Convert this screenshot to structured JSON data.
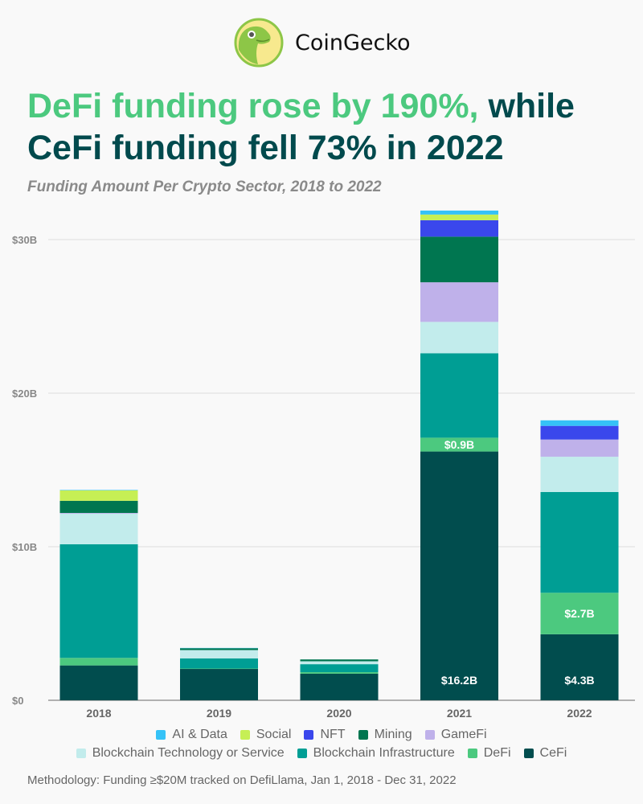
{
  "brand": {
    "name": "CoinGecko",
    "logo_icon": "gecko-logo-icon"
  },
  "title": {
    "highlight": "DeFi funding rose by 190%,",
    "rest_line1": " while",
    "line2": "CeFi funding fell 73% in 2022"
  },
  "colors": {
    "highlight": "#4cc97f",
    "title": "#014a4d"
  },
  "chart_data": {
    "type": "bar",
    "stacked": true,
    "title": "Funding Amount Per Crypto Sector, 2018 to 2022",
    "xlabel": "",
    "ylabel": "",
    "categories": [
      "2018",
      "2019",
      "2020",
      "2021",
      "2022"
    ],
    "ylim": [
      0,
      32
    ],
    "yticks": [
      {
        "value": 0,
        "label": "$0"
      },
      {
        "value": 10,
        "label": "$10B"
      },
      {
        "value": 20,
        "label": "$20B"
      },
      {
        "value": 30,
        "label": "$30B"
      }
    ],
    "grid": true,
    "legend_position": "bottom",
    "series": [
      {
        "name": "CeFi",
        "color": "#014d4e",
        "values": [
          2.27,
          2.04,
          1.73,
          16.2,
          4.3
        ]
      },
      {
        "name": "DeFi",
        "color": "#4cc97f",
        "values": [
          0.49,
          0.03,
          0.1,
          0.9,
          2.7
        ]
      },
      {
        "name": "Blockchain Infrastructure",
        "color": "#009e94",
        "values": [
          7.4,
          0.66,
          0.52,
          5.5,
          6.56
        ]
      },
      {
        "name": "Blockchain Technology or Service",
        "color": "#c2ecec",
        "values": [
          1.99,
          0.54,
          0.19,
          2.04,
          2.3
        ]
      },
      {
        "name": "GameFi",
        "color": "#bfb1ea",
        "values": [
          0.05,
          0,
          0,
          2.58,
          1.12
        ]
      },
      {
        "name": "Mining",
        "color": "#007650",
        "values": [
          0.79,
          0.12,
          0.12,
          2.97,
          0
        ]
      },
      {
        "name": "NFT",
        "color": "#3a47ec",
        "values": [
          0,
          0,
          0,
          1.07,
          0.89
        ]
      },
      {
        "name": "Social",
        "color": "#c6ef55",
        "values": [
          0.68,
          0,
          0,
          0.37,
          0
        ]
      },
      {
        "name": "AI & Data",
        "color": "#35c2f7",
        "values": [
          0.03,
          0.02,
          0,
          0.26,
          0.36
        ]
      }
    ],
    "data_labels": [
      {
        "category": "2021",
        "series": "CeFi",
        "text": "$16.2B"
      },
      {
        "category": "2021",
        "series": "DeFi",
        "text": "$0.9B"
      },
      {
        "category": "2022",
        "series": "CeFi",
        "text": "$4.3B"
      },
      {
        "category": "2022",
        "series": "DeFi",
        "text": "$2.7B"
      }
    ],
    "legend_rows": [
      [
        "AI & Data",
        "Social",
        "NFT",
        "Mining",
        "GameFi"
      ],
      [
        "Blockchain Technology or Service",
        "Blockchain Infrastructure",
        "DeFi",
        "CeFi"
      ]
    ]
  },
  "methodology": "Methodology: Funding ≥$20M tracked on DefiLlama, Jan 1, 2018 - Dec 31, 2022"
}
